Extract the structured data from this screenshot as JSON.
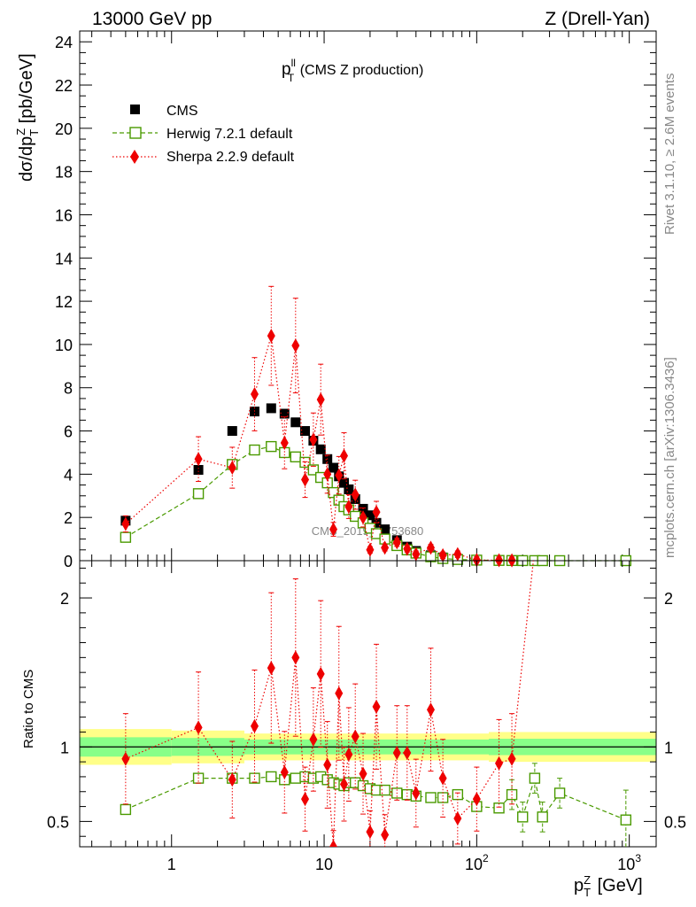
{
  "header": {
    "left": "13000 GeV pp",
    "right": "Z (Drell-Yan)"
  },
  "side_labels": {
    "rivet": "Rivet 3.1.10, ≥ 2.6M events",
    "mcplots": "mcplots.cern.ch [arXiv:1306.3436]"
  },
  "chart_data": [
    {
      "type": "scatter",
      "title": "p_T^ll (CMS Z production)",
      "title_main": "p",
      "title_sup": "ll",
      "title_sub": "T",
      "title_rest": " (CMS Z production)",
      "ylabel": "dσ/dp_T^Z [pb/GeV]",
      "watermark": "CMS_2019_I1753680",
      "x_scale": "log",
      "xlim": [
        0.25,
        1500
      ],
      "ylim": [
        0,
        24.5
      ],
      "y_ticks": [
        0,
        2,
        4,
        6,
        8,
        10,
        12,
        14,
        16,
        18,
        20,
        22,
        24
      ],
      "legend_position": "top-left",
      "series": [
        {
          "name": "CMS",
          "color": "#000000",
          "marker": "square-filled",
          "x": [
            0.5,
            1.5,
            2.5,
            3.5,
            4.5,
            5.5,
            6.5,
            7.5,
            8.5,
            9.5,
            10.5,
            11.5,
            12.5,
            13.5,
            14.5,
            16,
            18,
            20,
            22,
            25,
            30,
            35,
            40,
            50,
            60,
            75,
            100,
            140,
            170,
            200,
            240,
            270,
            350,
            950
          ],
          "y": [
            1.85,
            4.2,
            6.0,
            6.9,
            7.05,
            6.8,
            6.4,
            6.0,
            5.55,
            5.15,
            4.7,
            4.3,
            3.9,
            3.6,
            3.3,
            2.85,
            2.4,
            2.1,
            1.75,
            1.45,
            0.95,
            0.65,
            0.45,
            0.25,
            0.15,
            0.08,
            0.04,
            0.02,
            0.01,
            0.008,
            0.006,
            0.004,
            0.002,
            0.0003
          ]
        },
        {
          "name": "Herwig 7.2.1 default",
          "color": "#4a9a00",
          "marker": "square-open",
          "line": "dashed",
          "x": [
            0.5,
            1.5,
            2.5,
            3.5,
            4.5,
            5.5,
            6.5,
            7.5,
            8.5,
            9.5,
            10.5,
            11.5,
            12.5,
            13.5,
            14.5,
            16,
            18,
            20,
            22,
            25,
            30,
            35,
            40,
            50,
            60,
            75,
            100,
            140,
            170,
            200,
            240,
            270,
            350,
            950
          ],
          "y": [
            1.08,
            3.1,
            4.45,
            5.12,
            5.28,
            5.0,
            4.8,
            4.55,
            4.2,
            3.85,
            3.6,
            3.15,
            2.8,
            2.5,
            2.35,
            2.05,
            1.75,
            1.5,
            1.25,
            1.0,
            0.7,
            0.5,
            0.35,
            0.18,
            0.1,
            0.055,
            0.025,
            0.012,
            0.007,
            0.004,
            0.003,
            0.002,
            0.001,
            0.0002
          ]
        },
        {
          "name": "Sherpa 2.2.9 default",
          "color": "#ee0000",
          "marker": "diamond-filled",
          "line": "dotted",
          "x": [
            0.5,
            1.5,
            2.5,
            3.5,
            4.5,
            5.5,
            6.5,
            7.5,
            8.5,
            9.5,
            10.5,
            11.5,
            12.5,
            13.5,
            14.5,
            16,
            18,
            20,
            22,
            25,
            30,
            35,
            40,
            50,
            60,
            75,
            100,
            140,
            170
          ],
          "y": [
            1.7,
            4.7,
            4.3,
            7.7,
            10.4,
            5.45,
            9.95,
            3.75,
            5.6,
            7.45,
            4.0,
            1.45,
            3.95,
            4.85,
            2.5,
            3.05,
            2.0,
            0.5,
            2.25,
            0.6,
            0.85,
            0.55,
            0.3,
            0.6,
            0.25,
            0.3,
            0.03,
            0.02,
            0.015
          ]
        }
      ]
    },
    {
      "type": "scatter",
      "ylabel": "Ratio to CMS",
      "x_scale": "log",
      "xlim": [
        0.25,
        1500
      ],
      "ylim": [
        0.33,
        2.25
      ],
      "y_ticks": [
        0.5,
        1,
        2
      ],
      "xlabel": "p_T^Z [GeV]",
      "xlabel_main": "p",
      "xlabel_sup": "Z",
      "xlabel_sub": "T",
      "xlabel_rest": " [GeV]",
      "x_tick_labels": [
        "1",
        "10",
        "10",
        "10"
      ],
      "x_tick_exponents": [
        "",
        "",
        "2",
        "3"
      ],
      "series": [
        {
          "name": "Herwig 7.2.1 default",
          "color": "#4a9a00",
          "x": [
            0.5,
            1.5,
            2.5,
            3.5,
            4.5,
            5.5,
            6.5,
            7.5,
            8.5,
            9.5,
            10.5,
            11.5,
            12.5,
            13.5,
            14.5,
            16,
            18,
            20,
            22,
            25,
            30,
            35,
            40,
            50,
            60,
            75,
            100,
            140,
            170,
            200,
            240,
            270,
            350,
            950
          ],
          "y": [
            0.58,
            0.79,
            0.79,
            0.79,
            0.8,
            0.78,
            0.79,
            0.8,
            0.79,
            0.8,
            0.78,
            0.76,
            0.75,
            0.74,
            0.76,
            0.76,
            0.74,
            0.72,
            0.71,
            0.71,
            0.69,
            0.68,
            0.67,
            0.66,
            0.66,
            0.68,
            0.6,
            0.59,
            0.68,
            0.53,
            0.79,
            0.53,
            0.69,
            0.51
          ]
        },
        {
          "name": "Sherpa 2.2.9 default",
          "color": "#ee0000",
          "x": [
            0.5,
            1.5,
            2.5,
            3.5,
            4.5,
            5.5,
            6.5,
            7.5,
            8.5,
            9.5,
            10.5,
            11.5,
            12.5,
            13.5,
            14.5,
            16,
            18,
            20,
            22,
            25,
            30,
            35,
            40,
            50,
            60,
            75,
            100,
            140,
            170
          ],
          "y": [
            0.92,
            1.13,
            0.78,
            1.14,
            1.53,
            0.83,
            1.6,
            0.65,
            1.05,
            1.49,
            0.88,
            0.33,
            1.36,
            0.75,
            0.95,
            1.07,
            0.82,
            0.43,
            1.27,
            0.41,
            0.96,
            0.96,
            0.69,
            1.25,
            0.79,
            0.52,
            0.65,
            0.89,
            0.92
          ]
        }
      ]
    }
  ]
}
